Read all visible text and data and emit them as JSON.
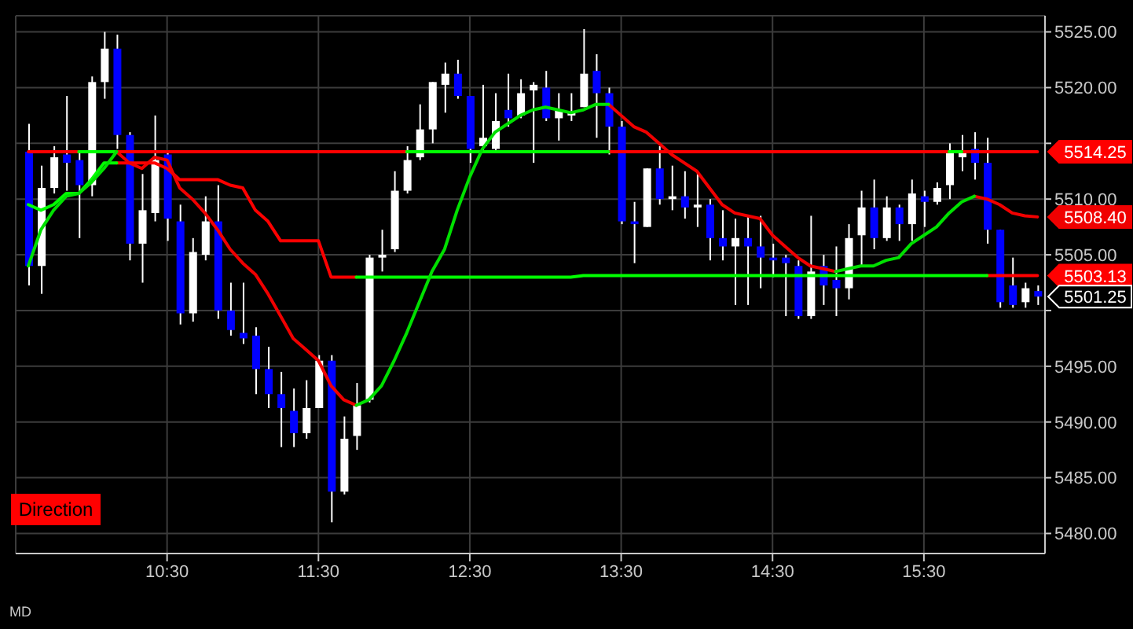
{
  "chart_data": {
    "type": "candlestick",
    "x": [
      9.5833,
      9.6667,
      9.75,
      9.8333,
      9.9167,
      10,
      10.0833,
      10.1667,
      10.25,
      10.3333,
      10.4167,
      10.5,
      10.5833,
      10.6667,
      10.75,
      10.8333,
      10.9167,
      11,
      11.0833,
      11.1667,
      11.25,
      11.3333,
      11.4167,
      11.5,
      11.5833,
      11.6667,
      11.75,
      11.8333,
      11.9167,
      12,
      12.0833,
      12.1667,
      12.25,
      12.3333,
      12.4167,
      12.5,
      12.5833,
      12.6667,
      12.75,
      12.8333,
      12.9167,
      13,
      13.0833,
      13.1667,
      13.25,
      13.3333,
      13.4167,
      13.5,
      13.5833,
      13.6667,
      13.75,
      13.8333,
      13.9167,
      14,
      14.0833,
      14.1667,
      14.25,
      14.3333,
      14.4167,
      14.5,
      14.5833,
      14.6667,
      14.75,
      14.8333,
      14.9167,
      15,
      15.0833,
      15.1667,
      15.25,
      15.3333,
      15.4167,
      15.5,
      15.5833,
      15.6667,
      15.75,
      15.8333,
      15.9167,
      16,
      16.0833,
      16.1667,
      16.25
    ],
    "ohlc": [
      [
        5514.25,
        5516.75,
        5502.25,
        5504
      ],
      [
        5504,
        5513,
        5501.5,
        5511
      ],
      [
        5511,
        5514.75,
        5510.5,
        5513.75
      ],
      [
        5514,
        5519.25,
        5510.75,
        5513.25
      ],
      [
        5513.5,
        5514.25,
        5506.5,
        5511.25
      ],
      [
        5511.25,
        5521,
        5510.25,
        5520.5
      ],
      [
        5520.5,
        5525,
        5519,
        5523.5
      ],
      [
        5523.5,
        5524.75,
        5514.5,
        5515.75
      ],
      [
        5515.75,
        5516,
        5504.5,
        5506
      ],
      [
        5506,
        5512.25,
        5502.5,
        5509
      ],
      [
        5508.75,
        5517.5,
        5508,
        5513.5
      ],
      [
        5514,
        5514.25,
        5506.25,
        5508.25
      ],
      [
        5508,
        5509.5,
        5498.75,
        5499.75
      ],
      [
        5499.75,
        5506.5,
        5499,
        5505.25
      ],
      [
        5505,
        5510.25,
        5504.5,
        5508
      ],
      [
        5508,
        5511.25,
        5499.25,
        5500
      ],
      [
        5500,
        5502.5,
        5497.75,
        5498.25
      ],
      [
        5498,
        5502.5,
        5497,
        5497.5
      ],
      [
        5497.75,
        5498.5,
        5492.5,
        5494.75
      ],
      [
        5494.75,
        5496.75,
        5491.25,
        5492.5
      ],
      [
        5492.5,
        5494.5,
        5487.75,
        5491.25
      ],
      [
        5491,
        5493,
        5487.75,
        5489
      ],
      [
        5489,
        5493.75,
        5488.5,
        5491.25
      ],
      [
        5491.25,
        5496,
        5491.25,
        5495.5
      ],
      [
        5495.5,
        5496,
        5481,
        5483.75
      ],
      [
        5483.75,
        5490.5,
        5483.5,
        5488.5
      ],
      [
        5488.75,
        5493.5,
        5487.5,
        5491.5
      ],
      [
        5492,
        5505,
        5491.75,
        5504.75
      ],
      [
        5504.75,
        5507.25,
        5503.5,
        5505
      ],
      [
        5505.5,
        5512.5,
        5505.25,
        5510.75
      ],
      [
        5510.75,
        5514.75,
        5510.5,
        5513.5
      ],
      [
        5513.75,
        5518.5,
        5513.5,
        5516.25
      ],
      [
        5516.25,
        5520.5,
        5515,
        5520.5
      ],
      [
        5520.25,
        5522.25,
        5517.75,
        5521.25
      ],
      [
        5521.25,
        5522.5,
        5519,
        5519.25
      ],
      [
        5519.25,
        5519.25,
        5513.25,
        5514.5
      ],
      [
        5514.75,
        5520.25,
        5514.25,
        5515.5
      ],
      [
        5514.5,
        5519.5,
        5514.25,
        5517
      ],
      [
        5518,
        5521.25,
        5516.5,
        5517.25
      ],
      [
        5517.5,
        5520.75,
        5517.25,
        5519.5
      ],
      [
        5519.75,
        5520.5,
        5513.25,
        5520.25
      ],
      [
        5520,
        5521.5,
        5517,
        5517.25
      ],
      [
        5517.25,
        5519.5,
        5515.25,
        5518
      ],
      [
        5517.5,
        5519.5,
        5517,
        5517.75
      ],
      [
        5518.25,
        5525.25,
        5518.25,
        5521.25
      ],
      [
        5521.5,
        5523,
        5515.5,
        5519.5
      ],
      [
        5519.5,
        5520,
        5514,
        5516.5
      ],
      [
        5516.5,
        5517,
        5507.75,
        5508
      ],
      [
        5508,
        5509.75,
        5504.25,
        5507.75
      ],
      [
        5507.5,
        5512.75,
        5507.5,
        5512.75
      ],
      [
        5512.75,
        5514.75,
        5509.5,
        5510
      ],
      [
        5510,
        5513,
        5509,
        5510.25
      ],
      [
        5510.25,
        5512.5,
        5508.25,
        5509.25
      ],
      [
        5509.25,
        5512.25,
        5507.5,
        5509.5
      ],
      [
        5509.5,
        5510,
        5504.5,
        5506.5
      ],
      [
        5506.5,
        5509,
        5504.5,
        5505.75
      ],
      [
        5505.75,
        5508.25,
        5500.5,
        5506.5
      ],
      [
        5506.5,
        5508.5,
        5500.5,
        5505.75
      ],
      [
        5505.75,
        5508.5,
        5502,
        5504.75
      ],
      [
        5504.75,
        5506,
        5503,
        5504.5
      ],
      [
        5504.75,
        5505,
        5499.5,
        5504.25
      ],
      [
        5504,
        5504.5,
        5499.25,
        5499.5
      ],
      [
        5499.5,
        5508.5,
        5499.25,
        5503.5
      ],
      [
        5504,
        5505,
        5500.5,
        5502.25
      ],
      [
        5502.75,
        5505.75,
        5499.5,
        5502
      ],
      [
        5502,
        5507.75,
        5501,
        5506.5
      ],
      [
        5506.75,
        5510.75,
        5504,
        5509.25
      ],
      [
        5509.25,
        5511.75,
        5505.5,
        5506.5
      ],
      [
        5506.5,
        5510.25,
        5506.25,
        5509.25
      ],
      [
        5509.25,
        5509.5,
        5506.25,
        5507.75
      ],
      [
        5507.75,
        5511.75,
        5506.25,
        5510.5
      ],
      [
        5510.25,
        5510.75,
        5507.5,
        5509.75
      ],
      [
        5509.75,
        5511.5,
        5509.5,
        5511
      ],
      [
        5511.25,
        5515,
        5510,
        5514.25
      ],
      [
        5513.75,
        5515.75,
        5512.5,
        5514.25
      ],
      [
        5514.5,
        5516,
        5511.75,
        5513.25
      ],
      [
        5513.25,
        5515.5,
        5506,
        5507.25
      ],
      [
        5507.25,
        5507.25,
        5500.25,
        5500.75
      ],
      [
        5502.25,
        5504.75,
        5500.25,
        5500.5
      ],
      [
        5500.75,
        5502.5,
        5500.25,
        5502
      ],
      [
        5501.75,
        5502.25,
        5500.5,
        5501.25
      ]
    ],
    "colors": [
      "#0000ff",
      "#ffffff",
      "#ffffff",
      "#0000ff",
      "#0000ff",
      "#ffffff",
      "#ffffff",
      "#0000ff",
      "#0000ff",
      "#ffffff",
      "#ffffff",
      "#0000ff",
      "#0000ff",
      "#ffffff",
      "#ffffff",
      "#0000ff",
      "#0000ff",
      "#0000ff",
      "#0000ff",
      "#0000ff",
      "#0000ff",
      "#0000ff",
      "#ffffff",
      "#ffffff",
      "#0000ff",
      "#ffffff",
      "#ffffff",
      "#ffffff",
      "#ffffff",
      "#ffffff",
      "#ffffff",
      "#ffffff",
      "#ffffff",
      "#ffffff",
      "#0000ff",
      "#0000ff",
      "#ffffff",
      "#ffffff",
      "#0000ff",
      "#ffffff",
      "#ffffff",
      "#0000ff",
      "#ffffff",
      "#ffffff",
      "#ffffff",
      "#0000ff",
      "#0000ff",
      "#0000ff",
      "#0000ff",
      "#ffffff",
      "#0000ff",
      "#ffffff",
      "#0000ff",
      "#ffffff",
      "#0000ff",
      "#0000ff",
      "#ffffff",
      "#0000ff",
      "#0000ff",
      "#0000ff",
      "#0000ff",
      "#0000ff",
      "#ffffff",
      "#0000ff",
      "#0000ff",
      "#ffffff",
      "#ffffff",
      "#0000ff",
      "#ffffff",
      "#0000ff",
      "#ffffff",
      "#0000ff",
      "#ffffff",
      "#ffffff",
      "#ffffff",
      "#0000ff",
      "#0000ff",
      "#0000ff",
      "#0000ff",
      "#ffffff",
      "#0000ff"
    ],
    "series": [
      {
        "type": "line",
        "color": "#ff0000",
        "values": [
          5514.25,
          5514.25,
          5514.25,
          5514.25,
          5514.25,
          null,
          null,
          5514.25,
          5514.25,
          5514.25,
          5514.25,
          5514.25,
          5514.25,
          5514.25,
          5514.25,
          5514.25,
          5514.25,
          5514.25,
          5514.25,
          5514.25,
          5514.25,
          5514.25,
          5514.25,
          5514.25,
          5514.25,
          5514.25,
          5514.25,
          5514.25,
          5514.25,
          5514.25,
          5514.25,
          null,
          null,
          null,
          null,
          null,
          null,
          null,
          null,
          null,
          null,
          null,
          null,
          null,
          null,
          null,
          5514.25,
          5514.25,
          5514.25,
          5514.25,
          5514.25,
          5514.25,
          5514.25,
          5514.25,
          5514.25,
          5514.25,
          5514.25,
          5514.25,
          5514.25,
          5514.25,
          5514.25,
          5514.25,
          5514.25,
          5514.25,
          5514.25,
          5514.25,
          5514.25,
          5514.25,
          5514.25,
          5514.25,
          5514.25,
          5514.25,
          5514.25,
          5514.25,
          5514.25,
          5514.25,
          5514.25,
          5514.25,
          5514.25,
          5514.25,
          5514.25
        ],
        "value_labels": [
          null,
          null,
          null,
          null,
          null,
          null,
          null,
          null,
          null,
          null,
          null,
          null,
          null,
          null,
          null,
          null,
          null,
          null,
          null,
          null,
          null,
          null,
          null,
          null,
          null,
          null,
          null,
          null,
          null,
          null,
          null,
          null,
          null,
          null,
          null,
          null,
          null,
          null,
          null,
          null,
          null,
          null,
          null,
          null,
          null,
          null,
          null,
          null,
          null,
          null,
          null,
          null,
          null,
          null,
          null,
          null,
          null,
          null,
          null,
          null,
          null,
          null,
          null,
          null,
          null,
          null,
          null,
          null,
          null,
          null,
          null,
          null,
          null,
          null,
          null,
          null,
          null,
          null,
          null,
          null,
          "5514.25"
        ]
      },
      {
        "type": "line",
        "color": "#00ff00",
        "values": [
          null,
          null,
          null,
          null,
          5514.25,
          5514.25,
          5514.25,
          5514.25,
          null,
          null,
          null,
          null,
          null,
          null,
          null,
          null,
          null,
          null,
          null,
          null,
          null,
          null,
          null,
          null,
          null,
          null,
          null,
          null,
          null,
          null,
          5514.25,
          5514.25,
          5514.25,
          5514.25,
          5514.25,
          5514.25,
          5514.25,
          5514.25,
          5514.25,
          5514.25,
          5514.25,
          5514.25,
          5514.25,
          5514.25,
          5514.25,
          5514.25,
          5514.25,
          null,
          null,
          null,
          null,
          null,
          null,
          null,
          null,
          null,
          null,
          null,
          null,
          null,
          null,
          null,
          null,
          null,
          null,
          null,
          null,
          null,
          null,
          null,
          null,
          null,
          null,
          5514.25,
          5514.25,
          null,
          null,
          null,
          null,
          null,
          null
        ]
      },
      {
        "type": "line",
        "color": "#ff0000",
        "values": [
          null,
          null,
          null,
          null,
          null,
          null,
          null,
          5513.25,
          5513.25,
          5513.25,
          5513.25,
          5512.75,
          5511.75,
          5511.75,
          5511.75,
          5511.75,
          5511.25,
          5511,
          5509,
          5508,
          5506.25,
          5506.25,
          5506.25,
          5506.25,
          5503,
          5503,
          5503,
          null,
          null,
          null,
          null,
          null,
          null,
          null,
          null,
          null,
          null,
          null,
          null,
          null,
          null,
          null,
          null,
          null,
          null,
          null,
          null,
          null,
          null,
          null,
          null,
          null,
          null,
          null,
          null,
          null,
          null,
          null,
          null,
          null,
          null,
          null,
          null,
          null,
          null,
          null,
          null,
          null,
          null,
          null,
          null,
          null,
          null,
          null,
          null,
          null,
          5503.13,
          5503.13,
          5503.13,
          5503.13,
          5503.13
        ],
        "value_labels": [
          null,
          null,
          null,
          null,
          null,
          null,
          null,
          null,
          null,
          null,
          null,
          null,
          null,
          null,
          null,
          null,
          null,
          null,
          null,
          null,
          null,
          null,
          null,
          null,
          null,
          null,
          null,
          null,
          null,
          null,
          null,
          null,
          null,
          null,
          null,
          null,
          null,
          null,
          null,
          null,
          null,
          null,
          null,
          null,
          null,
          null,
          null,
          null,
          null,
          null,
          null,
          null,
          null,
          null,
          null,
          null,
          null,
          null,
          null,
          null,
          null,
          null,
          null,
          null,
          null,
          null,
          null,
          null,
          null,
          null,
          null,
          null,
          null,
          null,
          null,
          null,
          null,
          null,
          null,
          null,
          "5503.13"
        ]
      },
      {
        "type": "line",
        "color": "#00ff00",
        "values": [
          5509.5,
          5509,
          5509.5,
          5510.5,
          5510.5,
          5511.75,
          5513.25,
          5513.25,
          null,
          null,
          null,
          null,
          null,
          null,
          null,
          null,
          null,
          null,
          null,
          null,
          null,
          null,
          null,
          null,
          null,
          null,
          5503,
          5503,
          5503,
          5503,
          5503,
          5503,
          5503,
          5503,
          5503,
          5503,
          5503,
          5503,
          5503,
          5503,
          5503,
          5503,
          5503,
          5503,
          5503.13,
          5503.13,
          5503.13,
          5503.13,
          5503.13,
          5503.13,
          5503.13,
          5503.13,
          5503.13,
          5503.13,
          5503.13,
          5503.13,
          5503.13,
          5503.13,
          5503.13,
          5503.13,
          5503.13,
          5503.13,
          5503.13,
          5503.13,
          5503.13,
          5503.13,
          5503.13,
          5503.13,
          5503.13,
          5503.13,
          5503.13,
          5503.13,
          5503.13,
          5503.13,
          5503.13,
          5503.13,
          5503.13,
          null,
          null,
          null,
          null
        ]
      },
      {
        "type": "line",
        "color": "#f00000",
        "values": [
          null,
          null,
          null,
          null,
          null,
          null,
          null,
          5514.25,
          5513.25,
          5512.75,
          5513.75,
          5513.5,
          5511,
          5510,
          5508.75,
          5507.25,
          5505.5,
          5504.25,
          5503.25,
          5501.5,
          5499.5,
          5497.5,
          5496.5,
          5495.5,
          5493.25,
          5492,
          5491.5,
          null,
          null,
          null,
          null,
          null,
          null,
          null,
          null,
          null,
          null,
          null,
          null,
          null,
          null,
          null,
          null,
          null,
          null,
          null,
          5518.5,
          5517.5,
          5516.5,
          5516,
          5515,
          5514,
          5513.25,
          5512.5,
          5511,
          5509.5,
          5508.75,
          5508.5,
          5508.25,
          5506.75,
          5505.75,
          5504.75,
          5504,
          5503.75,
          5503.5,
          null,
          null,
          null,
          null,
          null,
          null,
          null,
          null,
          null,
          null,
          5510.25,
          5510,
          5509.5,
          5508.75,
          5508.5,
          5508.4
        ],
        "value_labels": [
          null,
          null,
          null,
          null,
          null,
          null,
          null,
          null,
          null,
          null,
          null,
          null,
          null,
          null,
          null,
          null,
          null,
          null,
          null,
          null,
          null,
          null,
          null,
          null,
          null,
          null,
          null,
          null,
          null,
          null,
          null,
          null,
          null,
          null,
          null,
          null,
          null,
          null,
          null,
          null,
          null,
          null,
          null,
          null,
          null,
          null,
          null,
          null,
          null,
          null,
          null,
          null,
          null,
          null,
          null,
          null,
          null,
          null,
          null,
          null,
          null,
          null,
          null,
          null,
          null,
          null,
          null,
          null,
          null,
          null,
          null,
          null,
          null,
          null,
          null,
          null,
          null,
          null,
          null,
          null,
          "5508.40"
        ]
      },
      {
        "type": "line",
        "color": "#00e000",
        "values": [
          5504,
          5507.25,
          5509,
          5510.25,
          5510.5,
          5511.5,
          5512.75,
          5514.25,
          null,
          null,
          null,
          null,
          null,
          null,
          null,
          null,
          null,
          null,
          null,
          null,
          null,
          null,
          null,
          null,
          null,
          null,
          5491.5,
          5492,
          5493.25,
          5495.5,
          5498,
          5500.75,
          5503.5,
          5505.5,
          5509,
          5512,
          5514.5,
          5516,
          5516.75,
          5517.5,
          5518,
          5518.25,
          5518,
          5517.75,
          5518,
          5518.5,
          5518.5,
          null,
          null,
          null,
          null,
          null,
          null,
          null,
          null,
          null,
          null,
          null,
          null,
          null,
          null,
          null,
          null,
          null,
          5503.5,
          5503.75,
          5504,
          5504,
          5504.5,
          5504.75,
          5506,
          5506.75,
          5507.5,
          5508.75,
          5509.75,
          5510.25,
          null,
          null,
          null,
          null,
          null
        ]
      }
    ],
    "xlim": [
      9.5,
      16.3
    ],
    "xticks": [
      {
        "value": 10.5,
        "label": "10:30"
      },
      {
        "value": 11.5,
        "label": "11:30"
      },
      {
        "value": 12.5,
        "label": "12:30"
      },
      {
        "value": 13.5,
        "label": "13:30"
      },
      {
        "value": 14.5,
        "label": "14:30"
      },
      {
        "value": 15.5,
        "label": "15:30"
      }
    ],
    "ylim": [
      5478.2,
      5526.45
    ],
    "yticks": [
      {
        "value": 5480,
        "label": "5480.00"
      },
      {
        "value": 5485,
        "label": "5485.00"
      },
      {
        "value": 5490,
        "label": "5490.00"
      },
      {
        "value": 5495,
        "label": "5495.00"
      },
      {
        "value": 5500,
        "label": null
      },
      {
        "value": 5505,
        "label": "5505.00"
      },
      {
        "value": 5510,
        "label": "5510.00"
      },
      {
        "value": 5515,
        "label": null
      },
      {
        "value": 5520,
        "label": "5520.00"
      },
      {
        "value": 5525,
        "label": "5525.00"
      }
    ],
    "grid": true,
    "value_labels": [
      null,
      null,
      null,
      null,
      null,
      null,
      null,
      null,
      null,
      null,
      null,
      null,
      null,
      null,
      null,
      null,
      null,
      null,
      null,
      null,
      null,
      null,
      null,
      null,
      null,
      null,
      null,
      null,
      null,
      null,
      null,
      null,
      null,
      null,
      null,
      null,
      null,
      null,
      null,
      null,
      null,
      null,
      null,
      null,
      null,
      null,
      null,
      null,
      null,
      null,
      null,
      null,
      null,
      null,
      null,
      null,
      null,
      null,
      null,
      null,
      null,
      null,
      null,
      null,
      null,
      null,
      null,
      null,
      null,
      null,
      null,
      null,
      null,
      null,
      null,
      null,
      null,
      null,
      null,
      null,
      "5501.25"
    ],
    "annotations": [
      "Direction",
      "MD"
    ]
  }
}
